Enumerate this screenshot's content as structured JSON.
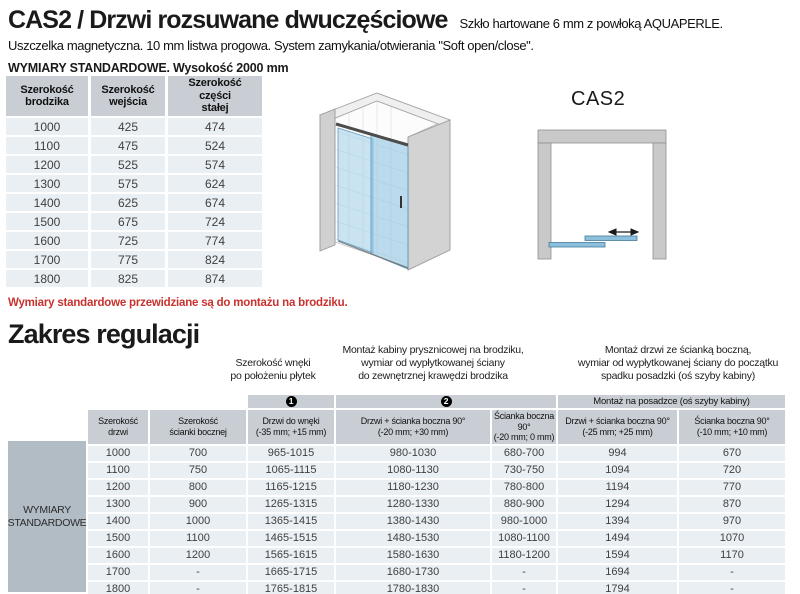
{
  "header": {
    "title": "CAS2 / Drzwi rozsuwane dwuczęściowe",
    "glass_note": "Szkło hartowane 6 mm z powłoką AQUAPERLE.",
    "features": "Uszczelka magnetyczna. 10 mm listwa progowa. System zamykania/otwierania \"Soft open/close\".",
    "dimensions_heading": "WYMIARY STANDARDOWE. Wysokość 2000 mm"
  },
  "standard_table": {
    "headers": [
      "Szerokość\nbrodzika",
      "Szerokość\nwejścia",
      "Szerokość\nczęści\nstałej"
    ],
    "rows": [
      [
        "1000",
        "425",
        "474"
      ],
      [
        "1100",
        "475",
        "524"
      ],
      [
        "1200",
        "525",
        "574"
      ],
      [
        "1300",
        "575",
        "624"
      ],
      [
        "1400",
        "625",
        "674"
      ],
      [
        "1500",
        "675",
        "724"
      ],
      [
        "1600",
        "725",
        "774"
      ],
      [
        "1700",
        "775",
        "824"
      ],
      [
        "1800",
        "825",
        "874"
      ]
    ],
    "note": "Wymiary standardowe przewidziane są do montażu na brodziku."
  },
  "diagrams": {
    "plan_label": "CAS2"
  },
  "regulation_section": {
    "title": "Zakres regulacji",
    "descriptions": [
      "Szerokość wnęki\npo położeniu płytek",
      "Montaż kabiny prysznicowej na brodziku,\nwymiar od wypłytkowanej ściany\ndo zewnętrznej krawędzi brodzika",
      "Montaż drzwi ze ścianką boczną,\nwymiar od wypłytkowanej ściany do początku\nspadku posadzki (oś szyby kabiny)"
    ],
    "groups": [
      "1",
      "2",
      "Montaż na posadzce (oś szyby kabiny)"
    ],
    "columns": [
      "Szerokość\ndrzwi",
      "Szerokość\nścianki bocznej",
      "Drzwi do wnęki\n(-35 mm; +15 mm)",
      "Drzwi + ścianka boczna 90°\n(-20 mm; +30 mm)",
      "Ścianka boczna 90°\n(-20 mm; 0 mm)",
      "Drzwi + ścianka boczna 90°\n(-25 mm; +25 mm)",
      "Ścianka boczna 90°\n(-10 mm; +10 mm)"
    ],
    "row_label": "WYMIARY\nSTANDARDOWE",
    "rows": [
      [
        "1000",
        "700",
        "965-1015",
        "980-1030",
        "680-700",
        "994",
        "670"
      ],
      [
        "1100",
        "750",
        "1065-1115",
        "1080-1130",
        "730-750",
        "1094",
        "720"
      ],
      [
        "1200",
        "800",
        "1165-1215",
        "1180-1230",
        "780-800",
        "1194",
        "770"
      ],
      [
        "1300",
        "900",
        "1265-1315",
        "1280-1330",
        "880-900",
        "1294",
        "870"
      ],
      [
        "1400",
        "1000",
        "1365-1415",
        "1380-1430",
        "980-1000",
        "1394",
        "970"
      ],
      [
        "1500",
        "1100",
        "1465-1515",
        "1480-1530",
        "1080-1100",
        "1494",
        "1070"
      ],
      [
        "1600",
        "1200",
        "1565-1615",
        "1580-1630",
        "1180-1200",
        "1594",
        "1170"
      ],
      [
        "1700",
        "-",
        "1665-1715",
        "1680-1730",
        "-",
        "1694",
        "-"
      ],
      [
        "1800",
        "-",
        "1765-1815",
        "1780-1830",
        "-",
        "1794",
        "-"
      ]
    ]
  },
  "colors": {
    "accent_red": "#c9322e",
    "table_header_bg": "#c9ced4",
    "table_row_bg": "#eaeff4",
    "row_label_bg": "#b2bcc4",
    "wall_gray": "#c9c9c9",
    "glass_blue": "#8fc4e2"
  }
}
